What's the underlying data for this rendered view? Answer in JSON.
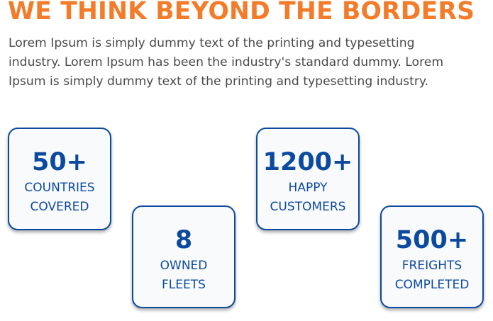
{
  "section": {
    "heading": "WE THINK BEYOND THE BORDERS",
    "description": "Lorem Ipsum is simply dummy text of the printing and typesetting industry. Lorem Ipsum has been the industry's standard dummy. Lorem Ipsum is simply dummy text of the printing and typesetting industry."
  },
  "stats": [
    {
      "number": "50+",
      "label": "COUNTRIES\nCOVERED"
    },
    {
      "number": "8",
      "label": "OWNED\nFLEETS"
    },
    {
      "number": "1200+",
      "label": "HAPPY\nCUSTOMERS"
    },
    {
      "number": "500+",
      "label": "FREIGHTS\nCOMPLETED"
    }
  ],
  "colors": {
    "heading": "#f37c2a",
    "body_text": "#4a4a4a",
    "card_accent": "#0b4a9e",
    "card_background": "#f9fafc"
  }
}
